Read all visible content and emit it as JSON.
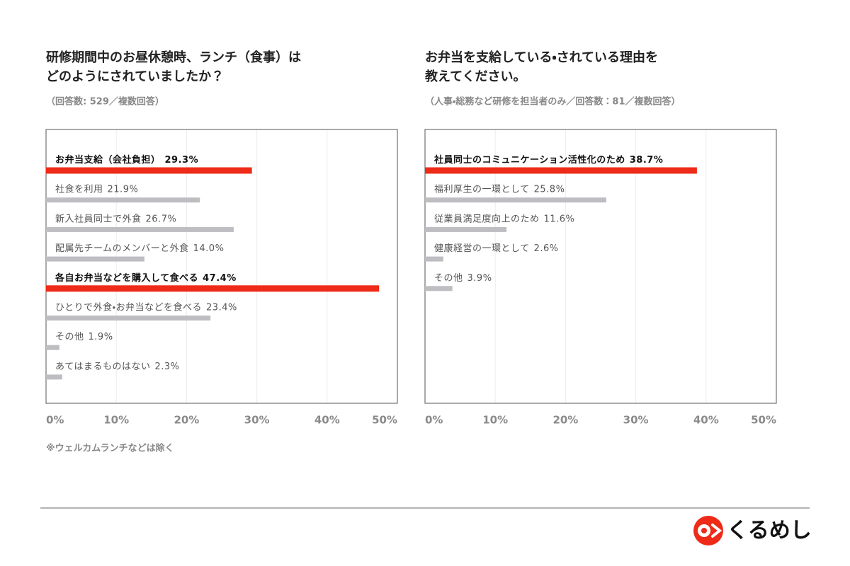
{
  "chart_data": [
    {
      "type": "barh",
      "title": [
        "研修期間中のお昼休憩時、ランチ（食事）は",
        "どのようにされていましたか？"
      ],
      "subtitle": "（回答数: 529／複数回答）",
      "categories": [
        "お弁当支給（会社負担）",
        "社食を利用",
        "新入社員同士で外食",
        "配属先チームのメンバーと外食",
        "各自お弁当などを購入して食べる",
        "ひとりで外食・お弁当などを食べる",
        "その他",
        "あてはまるものはない"
      ],
      "values": [
        29.3,
        21.9,
        26.7,
        14.0,
        47.4,
        23.4,
        1.9,
        2.3
      ],
      "value_labels": [
        "29.3%",
        "21.9%",
        "26.7%",
        "14.0%",
        "47.4%",
        "23.4%",
        "1.9%",
        "2.3%"
      ],
      "highlight": [
        true,
        false,
        false,
        false,
        true,
        false,
        false,
        false
      ],
      "color": "#bdbdc2",
      "highlight_color": "#ee2b18",
      "xlim": [
        0,
        50
      ],
      "xticks": [
        {
          "value": 0,
          "label": "0%"
        },
        {
          "value": 10,
          "label": "10%"
        },
        {
          "value": 20,
          "label": "20%"
        },
        {
          "value": 30,
          "label": "30%"
        },
        {
          "value": 40,
          "label": "40%"
        },
        {
          "value": 50,
          "label": "50%"
        }
      ],
      "grid": true,
      "note": "※ウェルカムランチなどは除く"
    },
    {
      "type": "barh",
      "title": [
        "お弁当を支給している・されている理由を",
        "教えてください。"
      ],
      "subtitle": "（人事・総務など研修を担当者のみ／回答数：81／複数回答）",
      "categories": [
        "社員同士のコミュニケーション活性化のため",
        "福利厚生の一環として",
        "従業員満足度向上のため",
        "健康経営の一環として",
        "その他"
      ],
      "values": [
        38.7,
        25.8,
        11.6,
        2.6,
        3.9
      ],
      "value_labels": [
        "38.7%",
        "25.8%",
        "11.6%",
        "2.6%",
        "3.9%"
      ],
      "highlight": [
        true,
        false,
        false,
        false,
        false
      ],
      "color": "#bdbdc2",
      "highlight_color": "#ee2b18",
      "xlim": [
        0,
        50
      ],
      "xticks": [
        {
          "value": 0,
          "label": "0%"
        },
        {
          "value": 10,
          "label": "10%"
        },
        {
          "value": 20,
          "label": "20%"
        },
        {
          "value": 30,
          "label": "30%"
        },
        {
          "value": 40,
          "label": "40%"
        },
        {
          "value": 50,
          "label": "50%"
        }
      ],
      "grid": true
    }
  ],
  "brand": "くるめし"
}
